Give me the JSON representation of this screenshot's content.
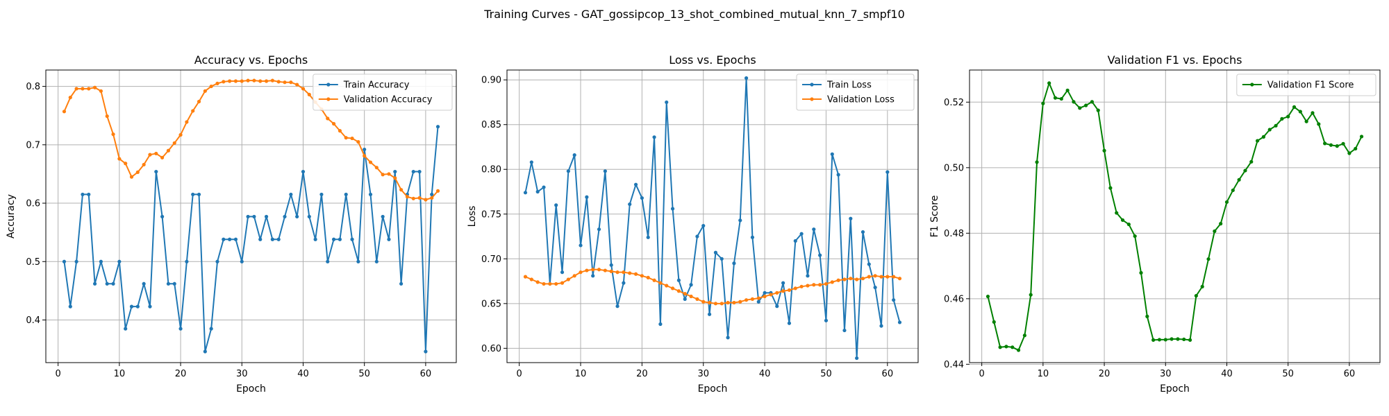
{
  "figure": {
    "suptitle": "Training Curves - GAT_gossipcop_13_shot_combined_mutual_knn_7_smpf10"
  },
  "colors": {
    "train": "#1f77b4",
    "validation": "#ff7f0e",
    "f1": "#008000"
  },
  "chart_data": [
    {
      "type": "line",
      "title": "Accuracy vs. Epochs",
      "xlabel": "Epoch",
      "ylabel": "Accuracy",
      "xlim": [
        -2,
        65
      ],
      "ylim": [
        0.327,
        0.828
      ],
      "xticks": [
        0,
        10,
        20,
        30,
        40,
        50,
        60
      ],
      "yticks": [
        0.4,
        0.5,
        0.6,
        0.7,
        0.8
      ],
      "ytick_decimals": 1,
      "grid": true,
      "legend": "top-right",
      "x_start": 1,
      "series": [
        {
          "name": "Train Accuracy",
          "color_key": "train",
          "values": [
            0.5,
            0.423,
            0.5,
            0.615,
            0.615,
            0.462,
            0.5,
            0.462,
            0.462,
            0.5,
            0.385,
            0.423,
            0.423,
            0.462,
            0.423,
            0.654,
            0.577,
            0.462,
            0.462,
            0.385,
            0.5,
            0.615,
            0.615,
            0.346,
            0.385,
            0.5,
            0.538,
            0.538,
            0.538,
            0.5,
            0.577,
            0.577,
            0.538,
            0.577,
            0.538,
            0.538,
            0.577,
            0.615,
            0.577,
            0.654,
            0.577,
            0.538,
            0.615,
            0.5,
            0.538,
            0.538,
            0.615,
            0.538,
            0.5,
            0.692,
            0.615,
            0.5,
            0.577,
            0.538,
            0.654,
            0.462,
            0.615,
            0.654,
            0.654,
            0.346,
            0.615,
            0.731
          ]
        },
        {
          "name": "Validation Accuracy",
          "color_key": "validation",
          "values": [
            0.757,
            0.781,
            0.796,
            0.796,
            0.796,
            0.798,
            0.792,
            0.749,
            0.718,
            0.676,
            0.668,
            0.645,
            0.653,
            0.666,
            0.683,
            0.685,
            0.678,
            0.69,
            0.703,
            0.717,
            0.739,
            0.758,
            0.774,
            0.792,
            0.8,
            0.805,
            0.808,
            0.809,
            0.809,
            0.809,
            0.81,
            0.81,
            0.809,
            0.809,
            0.81,
            0.808,
            0.807,
            0.807,
            0.803,
            0.796,
            0.786,
            0.773,
            0.761,
            0.745,
            0.736,
            0.724,
            0.712,
            0.711,
            0.705,
            0.681,
            0.67,
            0.661,
            0.649,
            0.65,
            0.643,
            0.623,
            0.611,
            0.608,
            0.609,
            0.606,
            0.609,
            0.621
          ]
        }
      ]
    },
    {
      "type": "line",
      "title": "Loss vs. Epochs",
      "xlabel": "Epoch",
      "ylabel": "Loss",
      "xlim": [
        -2,
        65
      ],
      "ylim": [
        0.584,
        0.911
      ],
      "xticks": [
        0,
        10,
        20,
        30,
        40,
        50,
        60
      ],
      "yticks": [
        0.6,
        0.65,
        0.7,
        0.75,
        0.8,
        0.85,
        0.9
      ],
      "ytick_decimals": 2,
      "grid": true,
      "legend": "top-right",
      "x_start": 1,
      "series": [
        {
          "name": "Train Loss",
          "color_key": "train",
          "values": [
            0.774,
            0.808,
            0.775,
            0.78,
            0.672,
            0.76,
            0.685,
            0.798,
            0.816,
            0.715,
            0.769,
            0.681,
            0.733,
            0.798,
            0.693,
            0.647,
            0.673,
            0.761,
            0.783,
            0.768,
            0.724,
            0.836,
            0.627,
            0.875,
            0.756,
            0.676,
            0.655,
            0.671,
            0.725,
            0.737,
            0.638,
            0.707,
            0.7,
            0.612,
            0.695,
            0.743,
            0.902,
            0.724,
            0.652,
            0.662,
            0.662,
            0.647,
            0.673,
            0.628,
            0.72,
            0.728,
            0.681,
            0.733,
            0.704,
            0.631,
            0.817,
            0.794,
            0.62,
            0.745,
            0.589,
            0.73,
            0.694,
            0.668,
            0.625,
            0.797,
            0.654,
            0.629
          ]
        },
        {
          "name": "Validation Loss",
          "color_key": "validation",
          "values": [
            0.68,
            0.677,
            0.674,
            0.672,
            0.672,
            0.672,
            0.673,
            0.677,
            0.681,
            0.685,
            0.687,
            0.688,
            0.688,
            0.687,
            0.686,
            0.685,
            0.685,
            0.684,
            0.683,
            0.681,
            0.679,
            0.676,
            0.673,
            0.67,
            0.667,
            0.664,
            0.661,
            0.658,
            0.655,
            0.652,
            0.651,
            0.65,
            0.65,
            0.651,
            0.651,
            0.652,
            0.654,
            0.655,
            0.656,
            0.658,
            0.66,
            0.662,
            0.664,
            0.665,
            0.667,
            0.669,
            0.67,
            0.671,
            0.671,
            0.672,
            0.674,
            0.676,
            0.677,
            0.678,
            0.677,
            0.678,
            0.68,
            0.681,
            0.68,
            0.68,
            0.68,
            0.678
          ]
        }
      ]
    },
    {
      "type": "line",
      "title": "Validation F1 vs. Epochs",
      "xlabel": "Epoch",
      "ylabel": "F1 Score",
      "xlim": [
        -2,
        65
      ],
      "ylim": [
        0.4405,
        0.5298
      ],
      "xticks": [
        0,
        10,
        20,
        30,
        40,
        50,
        60
      ],
      "yticks": [
        0.44,
        0.46,
        0.48,
        0.5,
        0.52
      ],
      "ytick_decimals": 2,
      "grid": true,
      "legend": "top-right",
      "x_start": 1,
      "series": [
        {
          "name": "Validation F1 Score",
          "color_key": "f1",
          "values": [
            0.4607,
            0.4529,
            0.4452,
            0.4454,
            0.4452,
            0.4443,
            0.4488,
            0.4612,
            0.5017,
            0.5196,
            0.5258,
            0.5213,
            0.521,
            0.5236,
            0.5201,
            0.5182,
            0.519,
            0.5201,
            0.5175,
            0.5052,
            0.4938,
            0.4862,
            0.484,
            0.4827,
            0.4791,
            0.4679,
            0.4546,
            0.4474,
            0.4475,
            0.4475,
            0.4477,
            0.4477,
            0.4476,
            0.4474,
            0.4609,
            0.4637,
            0.4721,
            0.4806,
            0.4829,
            0.4895,
            0.4931,
            0.4963,
            0.4991,
            0.5018,
            0.5082,
            0.5094,
            0.5116,
            0.5128,
            0.5149,
            0.5156,
            0.5185,
            0.5171,
            0.5141,
            0.5167,
            0.5133,
            0.5074,
            0.5069,
            0.5066,
            0.5073,
            0.5044,
            0.5058,
            0.5095
          ]
        }
      ]
    }
  ]
}
